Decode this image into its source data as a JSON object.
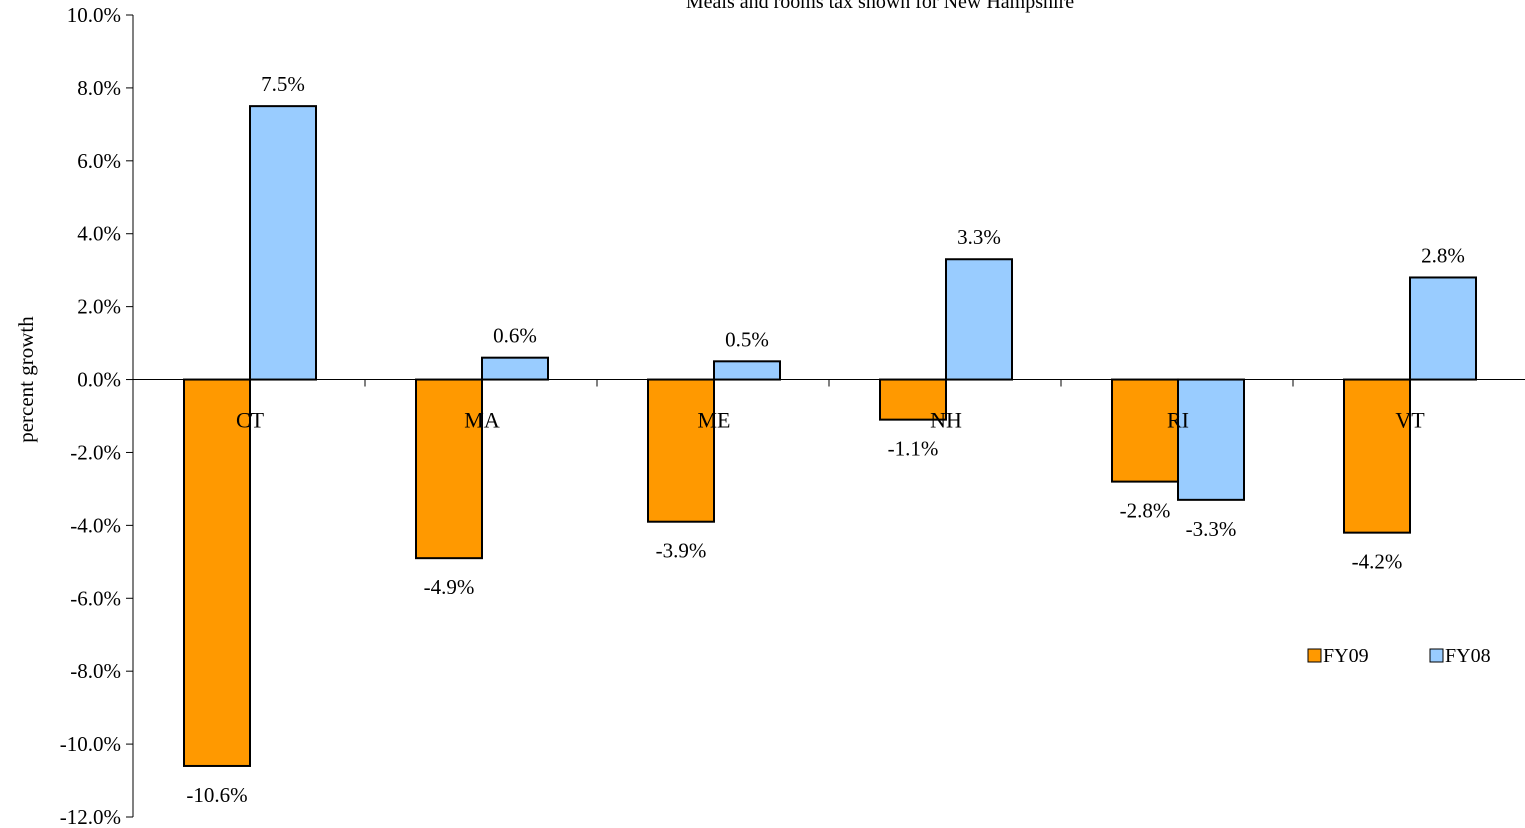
{
  "chart_data": {
    "type": "bar",
    "title": "Meals and rooms tax shown for New Hampshire",
    "xlabel": "",
    "ylabel": "percent growth",
    "categories": [
      "CT",
      "MA",
      "ME",
      "NH",
      "RI",
      "VT"
    ],
    "series": [
      {
        "name": "FY09",
        "color": "#FF9900",
        "values": [
          -10.6,
          -4.9,
          -3.9,
          -1.1,
          -2.8,
          -4.2
        ],
        "labels": [
          "-10.6%",
          "-4.9%",
          "-3.9%",
          "-1.1%",
          "-2.8%",
          "-4.2%"
        ]
      },
      {
        "name": "FY08",
        "color": "#99CCFF",
        "values": [
          7.5,
          0.6,
          0.5,
          3.3,
          -3.3,
          2.8
        ],
        "labels": [
          "7.5%",
          "0.6%",
          "0.5%",
          "3.3%",
          "-3.3%",
          "2.8%"
        ]
      }
    ],
    "ylim": [
      -12,
      10
    ],
    "yticks": [
      10,
      8,
      6,
      4,
      2,
      0,
      -2,
      -4,
      -6,
      -8,
      -10,
      -12
    ],
    "ytick_labels": [
      "10.0%",
      "8.0%",
      "6.0%",
      "4.0%",
      "2.0%",
      "0.0%",
      "-2.0%",
      "-4.0%",
      "-6.0%",
      "-8.0%",
      "-10.0%",
      "-12.0%"
    ],
    "grid": false,
    "legend_position": "right"
  }
}
